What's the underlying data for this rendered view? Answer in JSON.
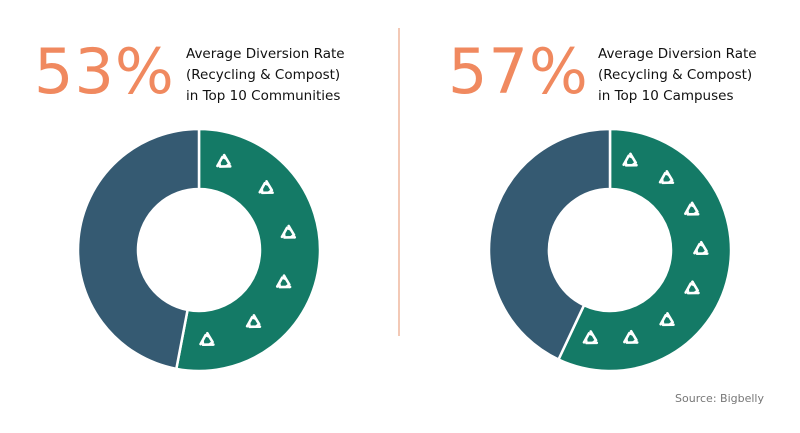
{
  "colors": {
    "accent": "#f0895f",
    "diverted": "#147a66",
    "not_diverted": "#355a72",
    "divider": "#f3c9b6"
  },
  "icon": "recycle-icon",
  "chart_data": [
    {
      "type": "pie",
      "variant": "donut",
      "big_value": "53%",
      "title_lines": [
        "Average Diversion Rate",
        "(Recycling & Compost)",
        "in Top 10 Communities"
      ],
      "slices": [
        {
          "value": 53,
          "color": "#147a66",
          "icon_count": 6
        },
        {
          "value": 47,
          "color": "#355a72",
          "icon_count": 0
        }
      ]
    },
    {
      "type": "pie",
      "variant": "donut",
      "big_value": "57%",
      "title_lines": [
        "Average Diversion Rate",
        "(Recycling & Compost)",
        "in Top 10 Campuses"
      ],
      "slices": [
        {
          "value": 57,
          "color": "#147a66",
          "icon_count": 8
        },
        {
          "value": 43,
          "color": "#355a72",
          "icon_count": 0
        }
      ]
    }
  ],
  "source": "Source: Bigbelly"
}
